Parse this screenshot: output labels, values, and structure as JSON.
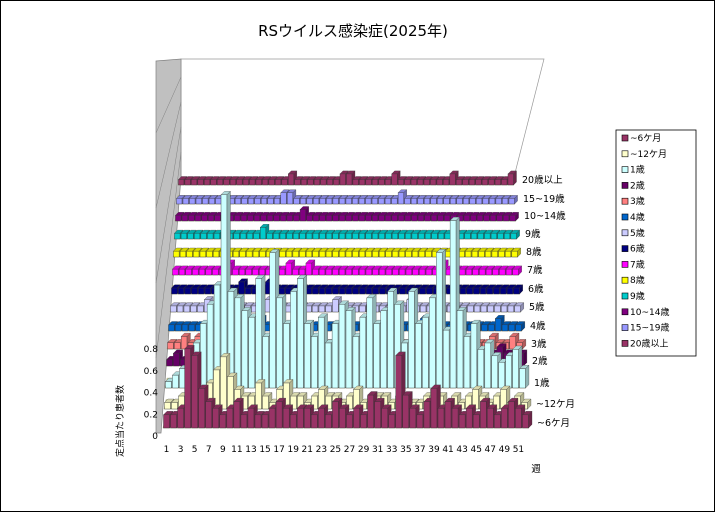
{
  "chart_data": {
    "type": "bar",
    "subtype": "3d-column-stacked-series",
    "title": "RSウイルス感染症(2025年)",
    "xlabel": "週",
    "ylabel": "定点当たり患者数",
    "ylim": [
      0,
      0.8
    ],
    "yticks": [
      "0",
      "0.2",
      "0.4",
      "0.6",
      "0.8"
    ],
    "x_tick_labels": [
      "1",
      "3",
      "5",
      "7",
      "9",
      "11",
      "13",
      "15",
      "17",
      "19",
      "21",
      "23",
      "25",
      "27",
      "29",
      "31",
      "33",
      "35",
      "37",
      "39",
      "41",
      "43",
      "45",
      "47",
      "49",
      "51"
    ],
    "weeks": [
      1,
      2,
      3,
      4,
      5,
      6,
      7,
      8,
      9,
      10,
      11,
      12,
      13,
      14,
      15,
      16,
      17,
      18,
      19,
      20,
      21,
      22,
      23,
      24,
      25,
      26,
      27,
      28,
      29,
      30,
      31,
      32,
      33,
      34,
      35,
      36,
      37,
      38,
      39,
      40,
      41,
      42,
      43,
      44,
      45,
      46,
      47,
      48,
      49,
      50,
      51,
      52
    ],
    "legend_position": "right",
    "grid": true,
    "series": [
      {
        "name": "~6ケ月",
        "axis_label": "~6ケ月",
        "color": "#993366",
        "values": [
          0.04,
          0.04,
          0.06,
          0.24,
          0.22,
          0.12,
          0.08,
          0.06,
          0.04,
          0.06,
          0.08,
          0.04,
          0.06,
          0.04,
          0.04,
          0.06,
          0.08,
          0.06,
          0.04,
          0.06,
          0.06,
          0.04,
          0.06,
          0.04,
          0.08,
          0.06,
          0.04,
          0.06,
          0.04,
          0.1,
          0.08,
          0.06,
          0.04,
          0.22,
          0.1,
          0.06,
          0.04,
          0.08,
          0.12,
          0.06,
          0.08,
          0.06,
          0.04,
          0.06,
          0.04,
          0.08,
          0.06,
          0.04,
          0.06,
          0.08,
          0.06,
          0.04
        ]
      },
      {
        "name": "~12ケ月",
        "axis_label": "~12ケ月",
        "color": "#FFFFCC",
        "values": [
          0.02,
          0.02,
          0.04,
          0.02,
          0.06,
          0.04,
          0.08,
          0.12,
          0.16,
          0.1,
          0.06,
          0.04,
          0.04,
          0.08,
          0.04,
          0.02,
          0.06,
          0.08,
          0.04,
          0.04,
          0.02,
          0.04,
          0.06,
          0.04,
          0.04,
          0.02,
          0.04,
          0.06,
          0.02,
          0.04,
          0.04,
          0.04,
          0.02,
          0.04,
          0.04,
          0.02,
          0.02,
          0.04,
          0.06,
          0.04,
          0.02,
          0.04,
          0.02,
          0.04,
          0.06,
          0.04,
          0.02,
          0.04,
          0.06,
          0.02,
          0.04,
          0.02
        ]
      },
      {
        "name": "1歳",
        "axis_label": "1歳",
        "color": "#CCFFFF",
        "values": [
          0.02,
          0.04,
          0.06,
          0.1,
          0.14,
          0.2,
          0.26,
          0.32,
          0.6,
          0.3,
          0.28,
          0.24,
          0.22,
          0.34,
          0.16,
          0.42,
          0.28,
          0.2,
          0.3,
          0.34,
          0.2,
          0.16,
          0.22,
          0.14,
          0.2,
          0.26,
          0.24,
          0.16,
          0.22,
          0.28,
          0.2,
          0.24,
          0.3,
          0.26,
          0.14,
          0.3,
          0.2,
          0.22,
          0.28,
          0.42,
          0.18,
          0.52,
          0.24,
          0.16,
          0.2,
          0.12,
          0.14,
          0.1,
          0.08,
          0.1,
          0.12,
          0.06
        ]
      },
      {
        "name": "2歳",
        "axis_label": "2歳",
        "color": "#660066",
        "values": [
          0.02,
          0.04,
          0.02,
          0.04,
          0.02,
          0.04,
          0.06,
          0.04,
          0.02,
          0.04,
          0.06,
          0.04,
          0.08,
          0.06,
          0.04,
          0.06,
          0.08,
          0.04,
          0.06,
          0.04,
          0.08,
          0.04,
          0.02,
          0.04,
          0.06,
          0.04,
          0.06,
          0.04,
          0.02,
          0.16,
          0.04,
          0.06,
          0.04,
          0.02,
          0.04,
          0.06,
          0.04,
          0.02,
          0.06,
          0.04,
          0.02,
          0.04,
          0.06,
          0.04,
          0.02,
          0.04,
          0.02,
          0.04,
          0.06,
          0.04,
          0.02,
          0.04
        ]
      },
      {
        "name": "3歳",
        "axis_label": "3歳",
        "color": "#FF8080",
        "values": [
          0.02,
          0.02,
          0.04,
          0.02,
          0.04,
          0.06,
          0.04,
          0.02,
          0.04,
          0.02,
          0.02,
          0.04,
          0.02,
          0.02,
          0.04,
          0.02,
          0.02,
          0.04,
          0.02,
          0.04,
          0.02,
          0.02,
          0.04,
          0.02,
          0.02,
          0.04,
          0.02,
          0.02,
          0.04,
          0.02,
          0.04,
          0.02,
          0.02,
          0.04,
          0.02,
          0.02,
          0.04,
          0.02,
          0.02,
          0.04,
          0.02,
          0.04,
          0.02,
          0.02,
          0.04,
          0.02,
          0.02,
          0.04,
          0.02,
          0.02,
          0.04,
          0.02
        ]
      },
      {
        "name": "4歳",
        "axis_label": "4歳",
        "color": "#0066CC",
        "values": [
          0.02,
          0.02,
          0.02,
          0.02,
          0.02,
          0.02,
          0.02,
          0.02,
          0.04,
          0.02,
          0.02,
          0.02,
          0.02,
          0.04,
          0.02,
          0.02,
          0.02,
          0.02,
          0.02,
          0.02,
          0.02,
          0.02,
          0.02,
          0.02,
          0.02,
          0.02,
          0.02,
          0.02,
          0.02,
          0.04,
          0.02,
          0.02,
          0.02,
          0.02,
          0.02,
          0.02,
          0.02,
          0.04,
          0.02,
          0.02,
          0.02,
          0.02,
          0.04,
          0.02,
          0.02,
          0.02,
          0.02,
          0.02,
          0.04,
          0.02,
          0.02,
          0.02
        ]
      },
      {
        "name": "5歳",
        "axis_label": "5歳",
        "color": "#CCCCFF",
        "values": [
          0.02,
          0.02,
          0.02,
          0.02,
          0.02,
          0.04,
          0.02,
          0.02,
          0.02,
          0.02,
          0.02,
          0.02,
          0.02,
          0.02,
          0.04,
          0.02,
          0.02,
          0.02,
          0.02,
          0.02,
          0.02,
          0.02,
          0.02,
          0.02,
          0.04,
          0.02,
          0.02,
          0.02,
          0.02,
          0.02,
          0.02,
          0.02,
          0.02,
          0.02,
          0.02,
          0.04,
          0.02,
          0.02,
          0.02,
          0.02,
          0.02,
          0.02,
          0.02,
          0.02,
          0.02,
          0.02,
          0.02,
          0.02,
          0.02,
          0.02,
          0.02,
          0.02
        ]
      },
      {
        "name": "6歳",
        "axis_label": "6歳",
        "color": "#000080",
        "values": [
          0.02,
          0.02,
          0.02,
          0.02,
          0.02,
          0.02,
          0.02,
          0.02,
          0.02,
          0.02,
          0.04,
          0.02,
          0.02,
          0.02,
          0.04,
          0.02,
          0.02,
          0.02,
          0.02,
          0.02,
          0.02,
          0.02,
          0.02,
          0.02,
          0.02,
          0.02,
          0.02,
          0.02,
          0.02,
          0.02,
          0.02,
          0.02,
          0.02,
          0.02,
          0.02,
          0.02,
          0.02,
          0.02,
          0.02,
          0.02,
          0.02,
          0.02,
          0.02,
          0.02,
          0.02,
          0.02,
          0.02,
          0.02,
          0.02,
          0.02,
          0.02,
          0.02
        ]
      },
      {
        "name": "7歳",
        "axis_label": "7歳",
        "color": "#FF00FF",
        "values": [
          0.02,
          0.02,
          0.02,
          0.02,
          0.02,
          0.02,
          0.02,
          0.02,
          0.04,
          0.02,
          0.02,
          0.02,
          0.02,
          0.02,
          0.02,
          0.02,
          0.02,
          0.04,
          0.02,
          0.02,
          0.04,
          0.02,
          0.02,
          0.02,
          0.02,
          0.02,
          0.02,
          0.02,
          0.02,
          0.02,
          0.02,
          0.02,
          0.02,
          0.02,
          0.02,
          0.02,
          0.02,
          0.02,
          0.02,
          0.02,
          0.04,
          0.02,
          0.02,
          0.02,
          0.02,
          0.02,
          0.02,
          0.02,
          0.02,
          0.02,
          0.02,
          0.02
        ]
      },
      {
        "name": "8歳",
        "axis_label": "8歳",
        "color": "#FFFF00",
        "values": [
          0.02,
          0.02,
          0.02,
          0.02,
          0.02,
          0.02,
          0.02,
          0.02,
          0.02,
          0.02,
          0.02,
          0.02,
          0.02,
          0.02,
          0.02,
          0.02,
          0.02,
          0.02,
          0.02,
          0.02,
          0.02,
          0.02,
          0.02,
          0.02,
          0.02,
          0.02,
          0.02,
          0.02,
          0.02,
          0.02,
          0.02,
          0.02,
          0.02,
          0.02,
          0.02,
          0.02,
          0.02,
          0.02,
          0.02,
          0.02,
          0.02,
          0.02,
          0.02,
          0.02,
          0.02,
          0.02,
          0.02,
          0.02,
          0.02,
          0.02,
          0.02,
          0.02
        ]
      },
      {
        "name": "9歳",
        "axis_label": "9歳",
        "color": "#00CCCC",
        "values": [
          0.02,
          0.02,
          0.02,
          0.02,
          0.02,
          0.02,
          0.02,
          0.02,
          0.02,
          0.02,
          0.02,
          0.02,
          0.02,
          0.04,
          0.02,
          0.02,
          0.02,
          0.02,
          0.02,
          0.02,
          0.02,
          0.02,
          0.02,
          0.02,
          0.02,
          0.02,
          0.02,
          0.02,
          0.02,
          0.02,
          0.02,
          0.02,
          0.02,
          0.02,
          0.02,
          0.02,
          0.02,
          0.02,
          0.02,
          0.02,
          0.02,
          0.02,
          0.02,
          0.02,
          0.02,
          0.02,
          0.02,
          0.02,
          0.02,
          0.02,
          0.02,
          0.02
        ]
      },
      {
        "name": "10~14歳",
        "axis_label": "10~14歳",
        "color": "#800080",
        "values": [
          0.02,
          0.02,
          0.02,
          0.02,
          0.02,
          0.02,
          0.02,
          0.02,
          0.02,
          0.02,
          0.02,
          0.02,
          0.02,
          0.02,
          0.02,
          0.02,
          0.02,
          0.02,
          0.02,
          0.04,
          0.02,
          0.02,
          0.02,
          0.02,
          0.02,
          0.02,
          0.02,
          0.02,
          0.02,
          0.02,
          0.02,
          0.02,
          0.02,
          0.02,
          0.02,
          0.02,
          0.02,
          0.02,
          0.02,
          0.02,
          0.02,
          0.02,
          0.02,
          0.02,
          0.02,
          0.02,
          0.02,
          0.02,
          0.02,
          0.02,
          0.02,
          0.02
        ]
      },
      {
        "name": "15~19歳",
        "axis_label": "15~19歳",
        "color": "#9999FF",
        "values": [
          0.02,
          0.02,
          0.02,
          0.02,
          0.02,
          0.02,
          0.02,
          0.02,
          0.02,
          0.02,
          0.02,
          0.02,
          0.02,
          0.02,
          0.02,
          0.02,
          0.04,
          0.04,
          0.02,
          0.02,
          0.02,
          0.02,
          0.02,
          0.02,
          0.02,
          0.02,
          0.02,
          0.02,
          0.02,
          0.02,
          0.02,
          0.02,
          0.02,
          0.02,
          0.04,
          0.02,
          0.02,
          0.02,
          0.02,
          0.02,
          0.02,
          0.02,
          0.02,
          0.02,
          0.02,
          0.02,
          0.02,
          0.02,
          0.02,
          0.02,
          0.02,
          0.02
        ]
      },
      {
        "name": "20歳以上",
        "axis_label": "20歳以上",
        "color": "#993366",
        "values": [
          0.02,
          0.02,
          0.02,
          0.02,
          0.02,
          0.02,
          0.02,
          0.02,
          0.02,
          0.02,
          0.02,
          0.02,
          0.02,
          0.02,
          0.02,
          0.02,
          0.02,
          0.04,
          0.02,
          0.02,
          0.02,
          0.02,
          0.02,
          0.02,
          0.02,
          0.04,
          0.04,
          0.02,
          0.02,
          0.02,
          0.02,
          0.02,
          0.02,
          0.04,
          0.02,
          0.02,
          0.02,
          0.02,
          0.02,
          0.02,
          0.02,
          0.02,
          0.04,
          0.02,
          0.02,
          0.02,
          0.02,
          0.02,
          0.02,
          0.02,
          0.02,
          0.04
        ]
      }
    ]
  }
}
